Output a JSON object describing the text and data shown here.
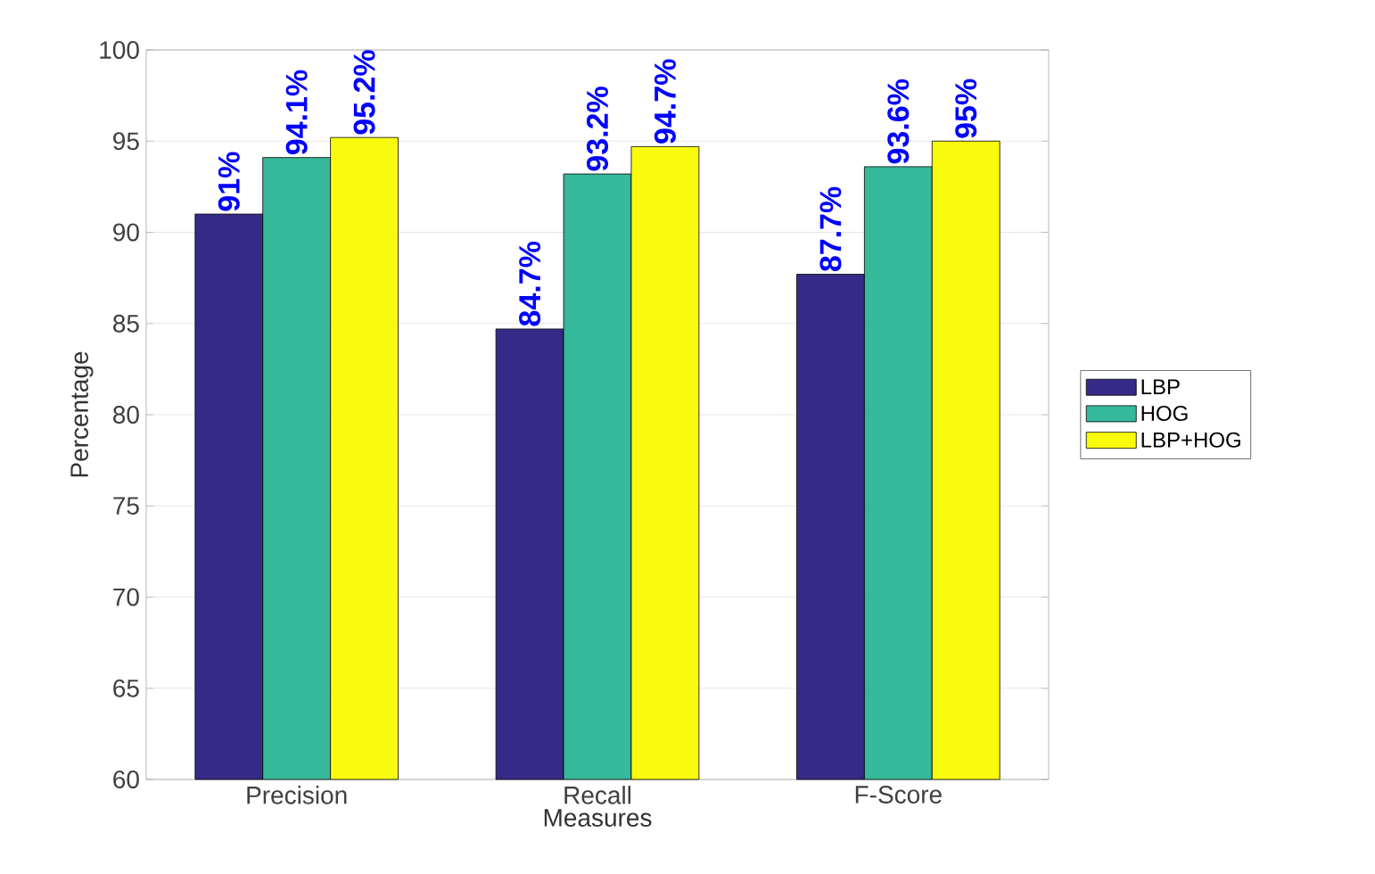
{
  "chart_data": {
    "type": "bar",
    "xlabel": "Measures",
    "ylabel": "Percentage",
    "categories": [
      "Precision",
      "Recall",
      "F-Score"
    ],
    "series": [
      {
        "name": "LBP",
        "color": "#352a87",
        "values": [
          91,
          84.7,
          87.7
        ],
        "value_labels": [
          "91%",
          "84.7%",
          "87.7%"
        ]
      },
      {
        "name": "HOG",
        "color": "#36b89a",
        "values": [
          94.1,
          93.2,
          93.6
        ],
        "value_labels": [
          "94.1%",
          "93.2%",
          "93.6%"
        ]
      },
      {
        "name": "LBP+HOG",
        "color": "#f9fb0e",
        "values": [
          95.2,
          94.7,
          95
        ],
        "value_labels": [
          "95.2%",
          "94.7%",
          "95%"
        ]
      }
    ],
    "ylim": [
      60,
      100
    ],
    "yticks": [
      60,
      65,
      70,
      75,
      80,
      85,
      90,
      95,
      100
    ],
    "grid": "y",
    "legend": "right"
  }
}
